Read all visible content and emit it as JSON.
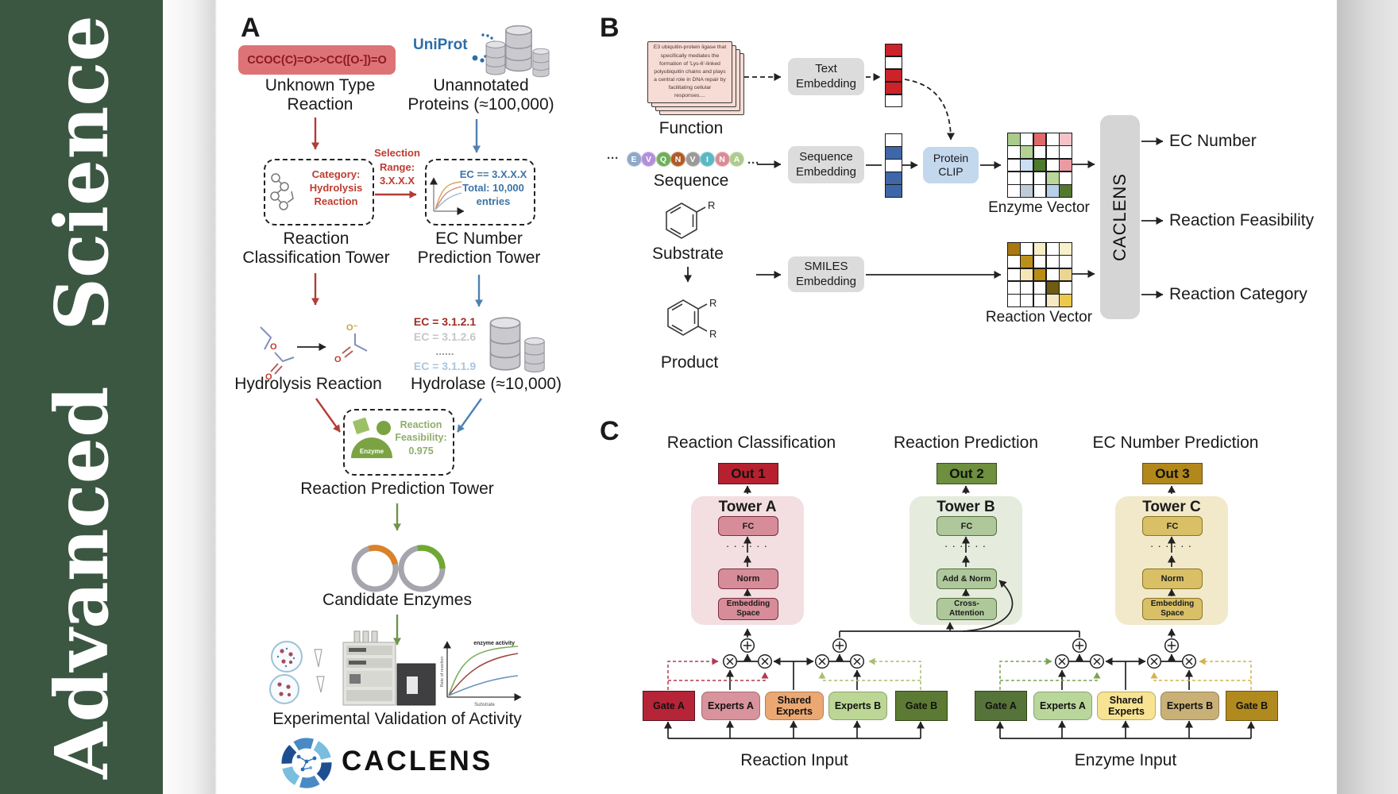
{
  "journal": {
    "name": "Advanced  Science"
  },
  "colors": {
    "sidebar_green": "#3b5742",
    "smiles_bg": "#dd7377",
    "smiles_text": "#8c1823",
    "uniprot_blue": "#2b6ea6",
    "red_arrow": "#b23c36",
    "blue_arrow": "#4e81b0",
    "green_arrow": "#6f9548",
    "feasibility_green": "#8fae6a",
    "card_bg": "#f6dcd4",
    "embed_gray": "#dcdcdc",
    "clip_blue": "#c3d7ed",
    "caclens_gray": "#d5d5d5",
    "tower_a": {
      "panel": "#f3dee1",
      "block": "#d78d99",
      "border": "#7a2e3e",
      "out": "#b7212f"
    },
    "tower_b": {
      "panel": "#e5ecdd",
      "block": "#aec79b",
      "border": "#55703a",
      "out": "#6d8f3e"
    },
    "tower_c": {
      "panel": "#f2e9cb",
      "block": "#d9c067",
      "border": "#8a7524",
      "out": "#b3881b"
    },
    "moe_reaction": {
      "gate_a": "#b52437",
      "experts_a": "#d9939d",
      "shared": "#eba873",
      "experts_b": "#bcd795",
      "gate_b": "#5c7a33"
    },
    "moe_enzyme": {
      "gate_a": "#567339",
      "experts_a": "#b9d79b",
      "shared": "#f7e391",
      "experts_b": "#c9b077",
      "gate_b": "#b08a1e"
    }
  },
  "panel_a": {
    "label": "A",
    "smiles": "CCOC(C)=O>>CC([O-])=O",
    "uniprot": "UniProt",
    "unknown_type": "Unknown Type\nReaction",
    "unannotated": "Unannotated\nProteins (≈100,000)",
    "category_box": "Category:\nHydrolysis\nReaction",
    "selection_range": "Selection\nRange:\n3.X.X.X",
    "ec_box": "EC == 3.X.X.X\nTotal: 10,000\nentries",
    "classification_tower": "Reaction\nClassification Tower",
    "prediction_tower": "EC Number\nPrediction Tower",
    "hydrolysis_reaction": "Hydrolysis Reaction",
    "ec_list": [
      {
        "text": "EC = 3.1.2.1",
        "color": "#9e2b25",
        "weight": "bold"
      },
      {
        "text": "EC = 3.1.2.6",
        "color": "#c6c6c6",
        "weight": "bold"
      },
      {
        "text": "......",
        "color": "#9a9a9a",
        "weight": "bold"
      },
      {
        "text": "EC = 3.1.1.9",
        "color": "#aac6de",
        "weight": "bold"
      }
    ],
    "hydrolase": "Hydrolase (≈10,000)",
    "enzyme_icon_label": "Enzyme",
    "feasibility": "Reaction\nFeasibility:\n0.975",
    "reaction_prediction_tower": "Reaction Prediction Tower",
    "candidate_enzymes": "Candidate Enzymes",
    "validation": "Experimental Validation of Activity",
    "caclens_wordmark": "CACLENS",
    "activity_plot": {
      "curve_label": "enzyme activity",
      "ylabel": "Rate of reaction",
      "xlabel": "Substrate"
    }
  },
  "panel_b": {
    "label": "B",
    "function_card": "E3 ubiquitin-protein ligase that specifically mediates the formation of 'Lys-6'-linked polyubiquitin chains and plays a central role in DNA repair by facilitating cellular responses....",
    "function_label": "Function",
    "ellipsis": "···",
    "residues": [
      {
        "letter": "E",
        "color": "#8fa8c8"
      },
      {
        "letter": "V",
        "color": "#b48fd9"
      },
      {
        "letter": "Q",
        "color": "#6fae5c"
      },
      {
        "letter": "N",
        "color": "#b05a2a"
      },
      {
        "letter": "V",
        "color": "#9a9a9a"
      },
      {
        "letter": "I",
        "color": "#5bb8c4"
      },
      {
        "letter": "N",
        "color": "#d98c96"
      },
      {
        "letter": "A",
        "color": "#aeca8e"
      }
    ],
    "sequence_label": "Sequence",
    "substrate_label": "Substrate",
    "product_label": "Product",
    "r_group": "R",
    "text_embedding": "Text\nEmbedding",
    "sequence_embedding": "Sequence\nEmbedding",
    "smiles_embedding": "SMILES\nEmbedding",
    "protein_clip": "Protein\nCLIP",
    "text_vector": [
      "#cc2229",
      "#ffffff",
      "#cc2229",
      "#cc2229",
      "#ffffff"
    ],
    "sequence_vector": [
      "#ffffff",
      "#3f66a8",
      "#ffffff",
      "#3f66a8",
      "#3f66a8"
    ],
    "enzyme_vector_label": "Enzyme Vector",
    "reaction_vector_label": "Reaction Vector",
    "enzyme_matrix": [
      "#a9cc8a",
      "#ffffff",
      "#e06a6a",
      "#ffffff",
      "#f3c3c9",
      "#ffffff",
      "#b2d193",
      "#ffffff",
      "#ffffff",
      "#ffffff",
      "#ffffff",
      "#ccdff2",
      "#4e7a2d",
      "#ffffff",
      "#eb9aa4",
      "#ffffff",
      "#ffffff",
      "#ffffff",
      "#b9d79a",
      "#ffffff",
      "#ffffff",
      "#bfcbd8",
      "#ffffff",
      "#b7cfe9",
      "#55762f"
    ],
    "reaction_matrix": [
      "#a8790f",
      "#ffffff",
      "#f6eec6",
      "#ffffff",
      "#f8f0ca",
      "#ffffff",
      "#bb8f1a",
      "#ffffff",
      "#ffffff",
      "#ffffff",
      "#ffffff",
      "#f4e7b5",
      "#b98d14",
      "#ffffff",
      "#ecd491",
      "#ffffff",
      "#ffffff",
      "#ffffff",
      "#6d5c12",
      "#ffffff",
      "#ffffff",
      "#ffffff",
      "#ffffff",
      "#f4ebc2",
      "#ecc94b"
    ],
    "caclens": "CACLENS",
    "outputs": [
      "EC Number",
      "Reaction Feasibility",
      "Reaction Category"
    ]
  },
  "panel_c": {
    "label": "C",
    "headings": [
      "Reaction Classification",
      "Reaction Prediction",
      "EC Number Prediction"
    ],
    "towers": {
      "a": {
        "out": "Out 1",
        "title": "Tower A",
        "fc": "FC",
        "dots": ". . . . . .",
        "mid": "Norm",
        "bottom": "Embedding\nSpace"
      },
      "b": {
        "out": "Out 2",
        "title": "Tower B",
        "fc": "FC",
        "dots": ". . . . . .",
        "mid": "Add & Norm",
        "bottom": "Cross-\nAttention"
      },
      "c": {
        "out": "Out 3",
        "title": "Tower C",
        "fc": "FC",
        "dots": ". . . . . .",
        "mid": "Norm",
        "bottom": "Embedding\nSpace"
      }
    },
    "moe_reaction": {
      "gate_a": "Gate A",
      "experts_a": "Experts A",
      "shared": "Shared\nExperts",
      "experts_b": "Experts B",
      "gate_b": "Gate B",
      "input": "Reaction Input"
    },
    "moe_enzyme": {
      "gate_a": "Gate A",
      "experts_a": "Experts A",
      "shared": "Shared\nExperts",
      "experts_b": "Experts B",
      "gate_b": "Gate B",
      "input": "Enzyme Input"
    }
  }
}
